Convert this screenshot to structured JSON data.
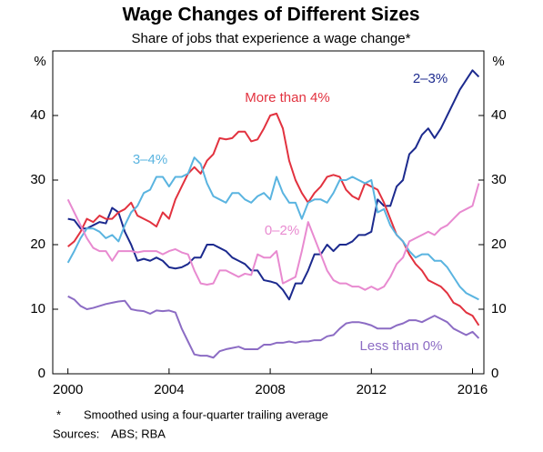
{
  "chart_data": {
    "type": "line",
    "title": "Wage Changes of Different Sizes",
    "subtitle": "Share of jobs that experience a wage change*",
    "y_unit": "%",
    "x": [
      2000,
      2000.25,
      2000.5,
      2000.75,
      2001,
      2001.25,
      2001.5,
      2001.75,
      2002,
      2002.25,
      2002.5,
      2002.75,
      2003,
      2003.25,
      2003.5,
      2003.75,
      2004,
      2004.25,
      2004.5,
      2004.75,
      2005,
      2005.25,
      2005.5,
      2005.75,
      2006,
      2006.25,
      2006.5,
      2006.75,
      2007,
      2007.25,
      2007.5,
      2007.75,
      2008,
      2008.25,
      2008.5,
      2008.75,
      2009,
      2009.25,
      2009.5,
      2009.75,
      2010,
      2010.25,
      2010.5,
      2010.75,
      2011,
      2011.25,
      2011.5,
      2011.75,
      2012,
      2012.25,
      2012.5,
      2012.75,
      2013,
      2013.25,
      2013.5,
      2013.75,
      2014,
      2014.25,
      2014.5,
      2014.75,
      2015,
      2015.25,
      2015.5,
      2015.75,
      2016,
      2016.25
    ],
    "series": [
      {
        "name": "2–3%",
        "color": "#1c2a8e",
        "values": [
          24,
          23.8,
          22.5,
          22.5,
          23,
          23.5,
          23.3,
          25.7,
          25,
          22,
          20,
          17.5,
          17.8,
          17.5,
          18,
          17.5,
          16.5,
          16.3,
          16.5,
          17,
          18,
          18,
          20,
          20,
          19.5,
          19,
          18,
          17.5,
          17,
          16,
          16,
          14.5,
          14.3,
          14,
          13,
          11.5,
          14,
          14,
          16,
          18.5,
          18.5,
          20,
          19,
          20,
          20,
          20.5,
          21.5,
          21.5,
          22,
          27,
          26,
          26,
          29,
          30,
          34,
          35,
          37,
          38,
          36.5,
          38,
          40,
          42,
          44,
          45.5,
          47,
          46
        ]
      },
      {
        "name": "More than 4%",
        "color": "#e2323f",
        "values": [
          19.7,
          20.5,
          22,
          24,
          23.5,
          24.5,
          24,
          24,
          25,
          25.5,
          26.5,
          24.5,
          24,
          23.5,
          22.8,
          25,
          24,
          27,
          29,
          31,
          32,
          31,
          33,
          34,
          36.5,
          36.3,
          36.5,
          37.5,
          37.5,
          36,
          36.3,
          38,
          40,
          40.3,
          38,
          33,
          30,
          28,
          26.5,
          28,
          29,
          30.5,
          30.8,
          30.5,
          28.5,
          27.5,
          27,
          29.5,
          29,
          28.5,
          26.5,
          24,
          21.5,
          20.5,
          18.5,
          17,
          16,
          14.5,
          14,
          13.5,
          12.5,
          11,
          10.5,
          9.5,
          9,
          7.5
        ]
      },
      {
        "name": "3–4%",
        "color": "#5ab4e0",
        "values": [
          17.2,
          19,
          21,
          22.5,
          22.5,
          22,
          21,
          21.5,
          20.5,
          23,
          25,
          26,
          28,
          28.5,
          30.5,
          30.5,
          29,
          30.5,
          30.5,
          31,
          33.5,
          32.5,
          29.5,
          27.5,
          27,
          26.5,
          28,
          28,
          27,
          26.5,
          27.5,
          28,
          27,
          30.5,
          28,
          26.5,
          26.5,
          24,
          26.5,
          27,
          27,
          26.5,
          28,
          30,
          30,
          30.5,
          30,
          29.5,
          30,
          25,
          25.5,
          23,
          21.5,
          20.5,
          19,
          18,
          18.5,
          18.5,
          17.5,
          17.5,
          16.5,
          15,
          13.5,
          12.5,
          12,
          11.5
        ]
      },
      {
        "name": "0–2%",
        "color": "#e88ad0",
        "values": [
          27,
          25,
          23,
          21,
          19.5,
          19,
          19,
          17.5,
          19,
          19,
          19,
          18.8,
          19,
          19,
          19,
          18.5,
          19,
          19.3,
          18.8,
          18.5,
          16,
          14,
          13.8,
          14,
          16,
          16,
          15.5,
          15,
          15.5,
          15.3,
          18.5,
          18,
          18,
          19,
          14,
          14.5,
          15,
          19,
          23.5,
          21,
          18.5,
          16,
          14.5,
          14,
          14,
          13.5,
          13.5,
          13,
          13.5,
          13,
          13.5,
          15,
          17,
          18,
          20.5,
          21,
          21.5,
          22,
          21.5,
          22.5,
          23,
          24,
          25,
          25.5,
          26,
          29.5
        ]
      },
      {
        "name": "Less than 0%",
        "color": "#8c6cc4",
        "values": [
          12,
          11.5,
          10.5,
          10,
          10.2,
          10.5,
          10.8,
          11,
          11.2,
          11.3,
          10,
          9.8,
          9.7,
          9.3,
          9.8,
          9.7,
          9.8,
          9.5,
          7,
          5,
          3,
          2.8,
          2.8,
          2.5,
          3.5,
          3.8,
          4,
          4.2,
          3.8,
          3.8,
          3.8,
          4.5,
          4.5,
          4.8,
          4.8,
          5,
          4.8,
          5,
          5,
          5.2,
          5.2,
          5.8,
          6,
          7,
          7.8,
          8,
          8,
          7.8,
          7.5,
          7,
          7,
          7,
          7.5,
          7.8,
          8.3,
          8.3,
          8,
          8.5,
          9,
          8.5,
          8,
          7,
          6.5,
          6,
          6.5,
          5.5
        ]
      }
    ],
    "xlim": [
      1999.4,
      2016.45
    ],
    "xticks": [
      2000,
      2004,
      2008,
      2012,
      2016
    ],
    "ylim": [
      0,
      50
    ],
    "yticks": [
      0,
      10,
      20,
      30,
      40
    ],
    "footnote_marker": "*",
    "footnote": "Smoothed using a four-quarter trailing average",
    "sources_label": "Sources:",
    "sources": "ABS; RBA"
  }
}
